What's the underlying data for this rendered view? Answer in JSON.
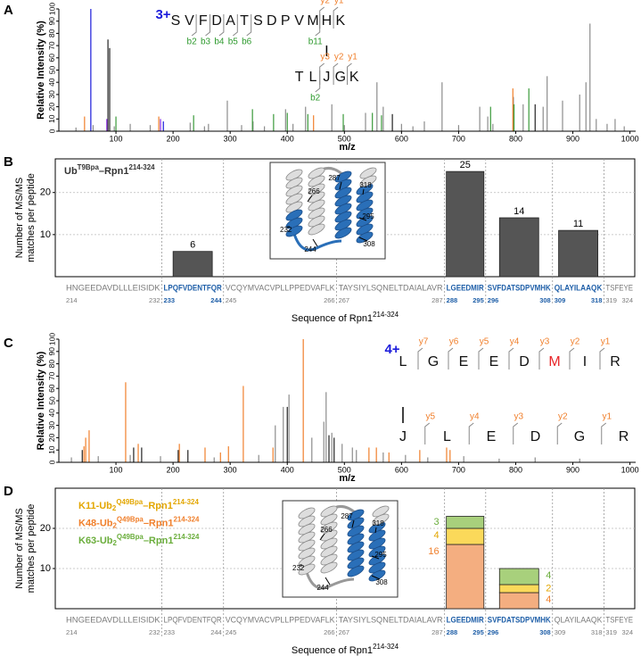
{
  "chart_data": [
    {
      "type": "spectrum",
      "panel_label": "A",
      "xlabel": "m/z",
      "ylabel": "Relative Intensity (%)",
      "xlim": [
        0,
        1010
      ],
      "ylim": [
        0,
        100
      ],
      "xticks": [
        100,
        200,
        300,
        400,
        500,
        600,
        700,
        800,
        900,
        1000
      ],
      "yticks": [
        0,
        10,
        20,
        30,
        40,
        50,
        60,
        70,
        80,
        90,
        100
      ],
      "series": [
        {
          "color": "#8c8c8c",
          "x": [
            30,
            60,
            97,
            125,
            160,
            230,
            255,
            262,
            295,
            320,
            340,
            360,
            397,
            410,
            432,
            478,
            500,
            537,
            557,
            568,
            600,
            620,
            640,
            671,
            700,
            737,
            751,
            760,
            796,
            813,
            848,
            855,
            882,
            912,
            923,
            930,
            941,
            960,
            974,
            990
          ],
          "values": [
            3,
            5,
            4,
            6,
            5,
            7,
            4,
            6,
            25,
            5,
            8,
            4,
            18,
            6,
            20,
            22,
            5,
            15,
            40,
            20,
            6,
            4,
            8,
            40,
            5,
            20,
            12,
            6,
            28,
            22,
            20,
            45,
            25,
            30,
            40,
            88,
            10,
            6,
            10,
            4
          ]
        },
        {
          "color": "#1a1adb",
          "x": [
            56,
            183
          ],
          "values": [
            100,
            8
          ]
        },
        {
          "color": "#8a2be2",
          "x": [
            84,
            178
          ],
          "values": [
            10,
            10
          ]
        },
        {
          "color": "#222222",
          "x": [
            86,
            89,
            584,
            834
          ],
          "values": [
            75,
            68,
            14,
            22
          ]
        },
        {
          "color": "#f07f2b",
          "x": [
            45,
            175,
            446,
            795
          ],
          "values": [
            12,
            12,
            13,
            35
          ]
        },
        {
          "color": "#3a9a3a",
          "x": [
            100,
            236,
            339,
            376,
            400,
            436,
            498,
            549,
            565,
            756,
            797,
            823
          ],
          "values": [
            12,
            13,
            18,
            14,
            15,
            14,
            14,
            15,
            13,
            20,
            22,
            35
          ]
        }
      ],
      "peptides": [
        {
          "charge": "3+",
          "charge_color": "#1a1adb",
          "residues": [
            "S",
            "V",
            "F",
            "D",
            "A",
            "T",
            "S",
            "D",
            "P",
            "V",
            "M",
            "H",
            "K"
          ],
          "ions_above": [
            "y2",
            "y1"
          ],
          "ions_below": [
            "b2",
            "b3",
            "b4",
            "b5",
            "b6",
            "b11"
          ]
        },
        {
          "residues": [
            "T",
            "L",
            "J",
            "G",
            "K"
          ],
          "ions_above": [
            "y3",
            "y2",
            "y1"
          ],
          "ions_below": [
            "b2"
          ]
        }
      ],
      "b_ion_color": "#2e9a2e",
      "y_ion_color": "#f07f2b"
    },
    {
      "type": "bar",
      "panel_label": "B",
      "title": [
        {
          "text": "Ub"
        },
        {
          "text": "T9Bpa",
          "shift": "super"
        },
        {
          "text": "–Rpn1"
        },
        {
          "text": "214-324",
          "shift": "super"
        }
      ],
      "ylabel": [
        "Number of MS/MS",
        "matches per peptide"
      ],
      "xlabel": [
        {
          "text": "Sequence of Rpn1"
        },
        {
          "text": "214-324",
          "shift": "super"
        }
      ],
      "categories": [
        "HNGEEDAVDLLLEISIDK",
        "LPQFVDENTFQR",
        "VCQYMVACVPLLPPEDVAFLK",
        "TAYSIYLSQNELTDAIALAVR",
        "LGEEDMIR",
        "SVFDATSDPVMHK",
        "QLAYILAAQK",
        "TSFEYE"
      ],
      "seq_start": [
        214,
        233,
        245,
        267,
        288,
        296,
        309,
        319
      ],
      "seq_end": [
        232,
        244,
        266,
        287,
        295,
        308,
        318,
        324
      ],
      "values": [
        null,
        6,
        null,
        null,
        25,
        14,
        11,
        null
      ],
      "color": "#555555",
      "highlight_color": "#1f5fa8",
      "ylim": [
        0,
        28
      ],
      "yticks": [
        10,
        20
      ],
      "grid": true,
      "inset_labels": [
        266,
        287,
        318,
        232,
        295,
        244,
        308
      ]
    },
    {
      "type": "spectrum",
      "panel_label": "C",
      "xlabel": "m/z",
      "ylabel": "Relative Intensity (%)",
      "xlim": [
        0,
        1010
      ],
      "ylim": [
        0,
        100
      ],
      "xticks": [
        100,
        200,
        300,
        400,
        500,
        600,
        700,
        800,
        900,
        1000
      ],
      "yticks": [
        0,
        10,
        20,
        30,
        40,
        50,
        60,
        70,
        80,
        90,
        100
      ],
      "series": [
        {
          "color": "#8c8c8c",
          "x": [
            22,
            69,
            125,
            178,
            272,
            350,
            379,
            393,
            403,
            443,
            464,
            468,
            478,
            496,
            514,
            521,
            568,
            607,
            646,
            709,
            771,
            834,
            912
          ],
          "values": [
            4,
            5,
            6,
            5,
            4,
            6,
            30,
            45,
            55,
            20,
            33,
            57,
            24,
            15,
            12,
            10,
            8,
            6,
            4,
            5,
            3,
            4,
            3
          ]
        },
        {
          "color": "#222222",
          "x": [
            41,
            131,
            145,
            209,
            226,
            400,
            473,
            482
          ],
          "values": [
            10,
            12,
            12,
            10,
            10,
            45,
            22,
            20
          ]
        },
        {
          "color": "#f07f2b",
          "x": [
            44,
            47,
            53,
            117,
            139,
            211,
            256,
            283,
            297,
            323,
            375,
            428,
            543,
            556,
            578,
            632,
            679,
            685
          ],
          "values": [
            13,
            20,
            26,
            65,
            15,
            15,
            12,
            8,
            13,
            62,
            12,
            100,
            12,
            12,
            8,
            10,
            12,
            10
          ]
        }
      ],
      "peptides": [
        {
          "charge": "4+",
          "charge_color": "#1a1adb",
          "residues": [
            "L",
            "G",
            "E",
            "E",
            "D",
            {
              "text": "M",
              "color": "#e8262a"
            },
            "I",
            "R"
          ],
          "ions_above": [
            "y7",
            "y6",
            "y5",
            "y4",
            "y3",
            "y2",
            "y1"
          ],
          "ions_below": []
        },
        {
          "residues": [
            "J",
            "L",
            "E",
            "D",
            "G",
            "R"
          ],
          "ions_above": [
            "y5",
            "y4",
            "y3",
            "y2",
            "y1"
          ],
          "ions_below": []
        }
      ],
      "b_ion_color": "#2e9a2e",
      "y_ion_color": "#f07f2b"
    },
    {
      "type": "stacked_bar",
      "panel_label": "D",
      "ylabel": [
        "Number of MS/MS",
        "matches per peptide"
      ],
      "xlabel": [
        {
          "text": "Sequence of Rpn1"
        },
        {
          "text": "214-324",
          "shift": "super"
        }
      ],
      "categories": [
        "HNGEEDAVDLLLEISIDK",
        "LPQFVDENTFQR",
        "VCQYMVACVPLLPPEDVAFLK",
        "TAYSIYLSQNELTDAIALAVR",
        "LGEEDMIR",
        "SVFDATSDPVMHK",
        "QLAYILAAQK",
        "TSFEYE"
      ],
      "seq_start": [
        214,
        233,
        245,
        267,
        288,
        296,
        309,
        319
      ],
      "seq_end": [
        232,
        244,
        266,
        287,
        295,
        308,
        318,
        324
      ],
      "series": [
        {
          "name": [
            {
              "text": "K48-Ub"
            },
            {
              "text": "2",
              "shift": "sub"
            },
            {
              "text": "Q49Bpa",
              "shift": "super"
            },
            {
              "text": "–Rpn1"
            },
            {
              "text": "214-324",
              "shift": "super"
            }
          ],
          "color": "#f4ae80",
          "label_color": "#f07f2b",
          "values": [
            null,
            null,
            null,
            null,
            16,
            4,
            null,
            null
          ]
        },
        {
          "name": [
            {
              "text": "K11-Ub"
            },
            {
              "text": "2",
              "shift": "sub"
            },
            {
              "text": "Q49Bpa",
              "shift": "super"
            },
            {
              "text": "–Rpn1"
            },
            {
              "text": "214-324",
              "shift": "super"
            }
          ],
          "color": "#fbd95a",
          "label_color": "#e3a600",
          "values": [
            null,
            null,
            null,
            null,
            4,
            2,
            null,
            null
          ]
        },
        {
          "name": [
            {
              "text": "K63-Ub"
            },
            {
              "text": "2",
              "shift": "sub"
            },
            {
              "text": "Q49Bpa",
              "shift": "super"
            },
            {
              "text": "–Rpn1"
            },
            {
              "text": "214-324",
              "shift": "super"
            }
          ],
          "color": "#a8d07c",
          "label_color": "#6aad3b",
          "values": [
            null,
            null,
            null,
            null,
            3,
            4,
            null,
            null
          ]
        }
      ],
      "highlight_color": "#1f5fa8",
      "ylim": [
        0,
        30
      ],
      "yticks": [
        10,
        20
      ],
      "grid": true,
      "inset_labels": [
        266,
        287,
        318,
        232,
        295,
        244,
        308
      ]
    }
  ]
}
